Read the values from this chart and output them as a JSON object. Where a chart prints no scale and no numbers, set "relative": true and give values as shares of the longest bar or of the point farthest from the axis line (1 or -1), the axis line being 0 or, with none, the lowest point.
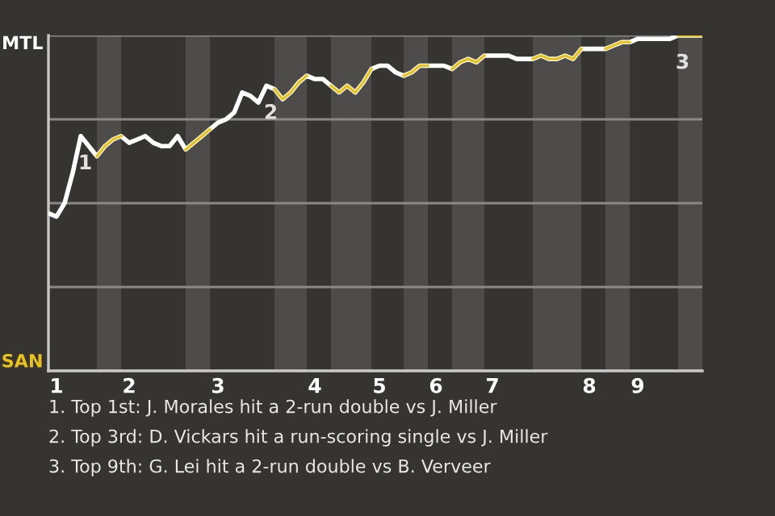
{
  "chart_data": {
    "type": "line",
    "relative": true,
    "categories": [
      null,
      "1",
      null,
      null,
      null,
      null,
      null,
      null,
      null,
      null,
      "2",
      null,
      null,
      null,
      null,
      null,
      null,
      null,
      null,
      null,
      null,
      "3",
      null,
      null,
      null,
      null,
      null,
      null,
      null,
      null,
      null,
      null,
      null,
      "4",
      null,
      null,
      null,
      null,
      null,
      null,
      null,
      "5",
      null,
      null,
      null,
      null,
      null,
      null,
      "6",
      null,
      null,
      null,
      null,
      null,
      null,
      "7",
      null,
      null,
      null,
      null,
      null,
      null,
      null,
      null,
      null,
      null,
      null,
      "8",
      null,
      null,
      null,
      null,
      null,
      "9",
      null,
      null,
      null,
      null,
      null,
      null,
      null,
      null
    ],
    "grid": "y",
    "legend": false,
    "series": [
      {
        "color": "#ffffff",
        "values": [
          0.47,
          0.46,
          0.5,
          0.59,
          0.7,
          0.67,
          0.64,
          0.67,
          0.69,
          0.7,
          0.68,
          0.69,
          0.7,
          0.68,
          0.67,
          0.67,
          0.7,
          0.66,
          0.68,
          0.7,
          0.72,
          0.74,
          0.75,
          0.77,
          0.83,
          0.82,
          0.8,
          0.85,
          0.84,
          0.81,
          0.83,
          0.86,
          0.88,
          0.87,
          0.87,
          0.85,
          0.83,
          0.85,
          0.83,
          0.86,
          0.9,
          0.91,
          0.91,
          0.89,
          0.88,
          0.89,
          0.91,
          0.91,
          0.91,
          0.91,
          0.9,
          0.92,
          0.93,
          0.92,
          0.94,
          0.94,
          0.94,
          0.94,
          0.93,
          0.93,
          0.93,
          0.94,
          0.93,
          0.93,
          0.94,
          0.93,
          0.96,
          0.96,
          0.96,
          0.96,
          0.97,
          0.98,
          0.98,
          0.99,
          0.99,
          0.99,
          0.99,
          0.99,
          1.0,
          1.0,
          1.0,
          1.0
        ]
      },
      {
        "color": "#e8c21a",
        "values": [
          null,
          null,
          null,
          null,
          null,
          null,
          0.64,
          0.67,
          0.69,
          0.7,
          null,
          null,
          null,
          null,
          null,
          null,
          null,
          0.66,
          0.68,
          0.7,
          0.72,
          null,
          null,
          null,
          null,
          null,
          null,
          null,
          0.84,
          0.81,
          0.83,
          0.86,
          0.88,
          null,
          null,
          0.85,
          0.83,
          0.85,
          0.83,
          0.86,
          0.9,
          null,
          null,
          null,
          0.88,
          0.89,
          0.91,
          0.91,
          null,
          null,
          0.9,
          0.92,
          0.93,
          0.92,
          0.94,
          null,
          null,
          null,
          null,
          null,
          0.93,
          0.94,
          0.93,
          0.93,
          0.94,
          0.93,
          0.96,
          null,
          null,
          0.96,
          0.97,
          0.98,
          0.98,
          null,
          null,
          null,
          null,
          null,
          1.0,
          1.0,
          1.0,
          1.0
        ]
      }
    ],
    "annotations": [
      "MTL",
      "SAN",
      {
        "text": "1",
        "y": 0.7
      },
      {
        "text": "2",
        "y": 0.85
      },
      {
        "text": "3",
        "y": 1.0
      },
      "1. Top 1st: J. Morales hit a 2-run double vs J. Miller",
      "2. Top 3rd: D. Vickars hit a run-scoring single vs J. Miller",
      "3. Top 9th: G. Lei hit a 2-run double vs B. Verveer"
    ]
  }
}
